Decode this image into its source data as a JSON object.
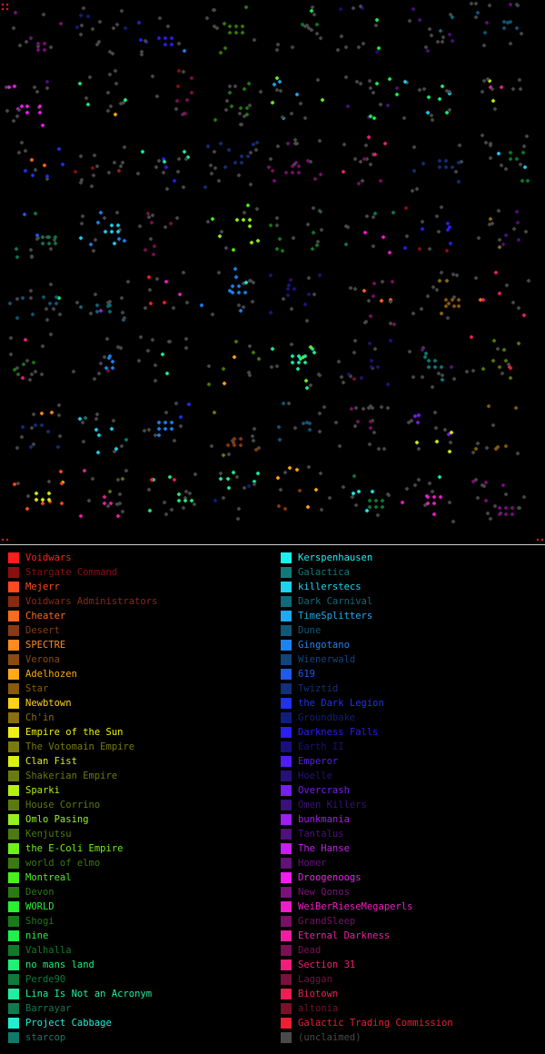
{
  "map": {
    "background": "#000000",
    "corner_color": "#ff2a2a",
    "unclaimed_color": "#4a4a4a"
  },
  "legend": {
    "columns": [
      [
        {
          "label": "Voidwars",
          "color": "#ff1e1e",
          "dim": false
        },
        {
          "label": "Stargate Command",
          "color": "#8a1010",
          "dim": true
        },
        {
          "label": "Mejerr",
          "color": "#ff4a1e",
          "dim": false
        },
        {
          "label": "Voidwars Administrators",
          "color": "#8a2a10",
          "dim": true
        },
        {
          "label": "Cheater",
          "color": "#ff6a1e",
          "dim": false
        },
        {
          "label": "Desert",
          "color": "#8a3a12",
          "dim": true
        },
        {
          "label": "SPECTRE",
          "color": "#ff8a1e",
          "dim": false
        },
        {
          "label": "Verona",
          "color": "#8a4a12",
          "dim": true
        },
        {
          "label": "Adelhozen",
          "color": "#ffaa14",
          "dim": false
        },
        {
          "label": "Star",
          "color": "#8a5a10",
          "dim": true
        },
        {
          "label": "Newbtown",
          "color": "#ffd214",
          "dim": false
        },
        {
          "label": "Ch'in",
          "color": "#8a6e10",
          "dim": true
        },
        {
          "label": "Empire of the Sun",
          "color": "#f0f014",
          "dim": false
        },
        {
          "label": "The Votomain Empire",
          "color": "#7a7a10",
          "dim": true
        },
        {
          "label": "Clan Fist",
          "color": "#d8f014",
          "dim": false
        },
        {
          "label": "Shakerian Empire",
          "color": "#6a7a10",
          "dim": true
        },
        {
          "label": "Sparki",
          "color": "#b4f014",
          "dim": false
        },
        {
          "label": "House Corrino",
          "color": "#5a7a10",
          "dim": true
        },
        {
          "label": "Omlo Pasing",
          "color": "#96f01e",
          "dim": false
        },
        {
          "label": "Kenjutsu",
          "color": "#4a7a10",
          "dim": true
        },
        {
          "label": "the E-Coli Empire",
          "color": "#6ef01e",
          "dim": false
        },
        {
          "label": "world of elmo",
          "color": "#3a7a10",
          "dim": true
        },
        {
          "label": "Montreal",
          "color": "#4af01e",
          "dim": false
        },
        {
          "label": "Devon",
          "color": "#2a7a12",
          "dim": true
        },
        {
          "label": "WORLD",
          "color": "#2af032",
          "dim": false
        },
        {
          "label": "Shogi",
          "color": "#1a7a1a",
          "dim": true
        },
        {
          "label": "nine",
          "color": "#1ef050",
          "dim": false
        },
        {
          "label": "Valhalla",
          "color": "#107a2a",
          "dim": true
        },
        {
          "label": "no mans land",
          "color": "#1ef078",
          "dim": false
        },
        {
          "label": "Perde90",
          "color": "#107a3a",
          "dim": true
        },
        {
          "label": "Lina Is Not an Acronym",
          "color": "#1ef0a0",
          "dim": false
        },
        {
          "label": "Barrayar",
          "color": "#107a4e",
          "dim": true
        },
        {
          "label": "Project Cabbage",
          "color": "#1ef0d2",
          "dim": false
        },
        {
          "label": "starcop",
          "color": "#107a6a",
          "dim": true
        }
      ],
      [
        {
          "label": "Kerspenhausen",
          "color": "#1ef0f0",
          "dim": false
        },
        {
          "label": "Galactica",
          "color": "#107a7a",
          "dim": true
        },
        {
          "label": "killerstecs",
          "color": "#1ed2f0",
          "dim": false
        },
        {
          "label": "Dark Carnival",
          "color": "#106a7a",
          "dim": true
        },
        {
          "label": "TimeSplitters",
          "color": "#1eaaf0",
          "dim": false
        },
        {
          "label": "Dune",
          "color": "#10587a",
          "dim": true
        },
        {
          "label": "Gingotano",
          "color": "#1e82f0",
          "dim": false
        },
        {
          "label": "Wienerwald",
          "color": "#10447a",
          "dim": true
        },
        {
          "label": "619",
          "color": "#1e5af0",
          "dim": false
        },
        {
          "label": "Twiztid",
          "color": "#10307a",
          "dim": true
        },
        {
          "label": "the Dark Legion",
          "color": "#1e32f0",
          "dim": false
        },
        {
          "label": "Groundbake",
          "color": "#101e7a",
          "dim": true
        },
        {
          "label": "Darkness Falls",
          "color": "#2a1ef0",
          "dim": false
        },
        {
          "label": "Earth II",
          "color": "#18107a",
          "dim": true
        },
        {
          "label": "Emperor",
          "color": "#501ef0",
          "dim": false
        },
        {
          "label": "Hoelle",
          "color": "#28107a",
          "dim": true
        },
        {
          "label": "Overcrash",
          "color": "#781ef0",
          "dim": false
        },
        {
          "label": "Omen Killers",
          "color": "#3a107a",
          "dim": true
        },
        {
          "label": "bunkmania",
          "color": "#a01ef0",
          "dim": false
        },
        {
          "label": "Tantalus",
          "color": "#4e107a",
          "dim": true
        },
        {
          "label": "The Hanse",
          "color": "#c81ef0",
          "dim": false
        },
        {
          "label": "Homer",
          "color": "#62107a",
          "dim": true
        },
        {
          "label": "Droogenoogs",
          "color": "#f01ef0",
          "dim": false
        },
        {
          "label": "New Qonos",
          "color": "#7a1078",
          "dim": true
        },
        {
          "label": "WeiBerRieseMegaperls",
          "color": "#f01ec8",
          "dim": false
        },
        {
          "label": "GrandSleep",
          "color": "#7a1066",
          "dim": true
        },
        {
          "label": "Eternal Darkness",
          "color": "#f01ea0",
          "dim": false
        },
        {
          "label": "Dead",
          "color": "#7a1052",
          "dim": true
        },
        {
          "label": "Section 31",
          "color": "#f01e78",
          "dim": false
        },
        {
          "label": "Laggan",
          "color": "#7a103e",
          "dim": true
        },
        {
          "label": "Biotown",
          "color": "#f01e50",
          "dim": false
        },
        {
          "label": "altonia",
          "color": "#7a102a",
          "dim": true
        },
        {
          "label": "Galactic Trading Commission",
          "color": "#f01e32",
          "dim": false
        },
        {
          "label": "(unclaimed)",
          "color": "#4a4a4a",
          "dim": true
        }
      ]
    ]
  }
}
